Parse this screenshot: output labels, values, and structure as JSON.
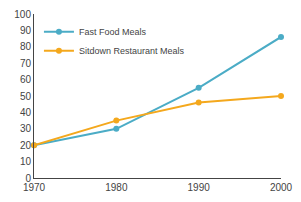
{
  "chart_data": {
    "type": "line",
    "x": [
      1970,
      1980,
      1990,
      2000
    ],
    "series": [
      {
        "name": "Fast Food Meals",
        "color": "#4BACC6",
        "values": [
          20,
          30,
          55,
          86
        ]
      },
      {
        "name": "Sitdown Restaurant Meals",
        "color": "#F4A81D",
        "values": [
          20,
          35,
          46,
          50
        ]
      }
    ],
    "xlim": [
      1970,
      2000
    ],
    "xticks": [
      1970,
      1980,
      1990,
      2000
    ],
    "ylim": [
      0,
      100
    ],
    "yticks": [
      0,
      10,
      20,
      30,
      40,
      50,
      60,
      70,
      80,
      90,
      100
    ],
    "marker": "circle",
    "grid": false,
    "legend": "upper left"
  }
}
